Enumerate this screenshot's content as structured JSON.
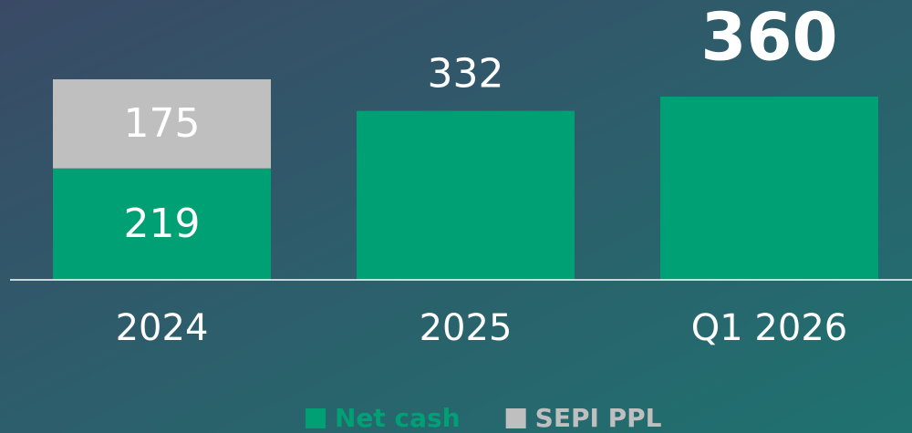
{
  "chart_data": {
    "type": "stacked_bar",
    "categories": [
      "2024",
      "2025",
      "Q1 2026"
    ],
    "series": [
      {
        "name": "Net cash",
        "color": "#00a075",
        "values": [
          219,
          332,
          360
        ]
      },
      {
        "name": "SEPI PPL",
        "color": "#bfbfbf",
        "values": [
          175,
          null,
          null
        ]
      }
    ]
  }
}
